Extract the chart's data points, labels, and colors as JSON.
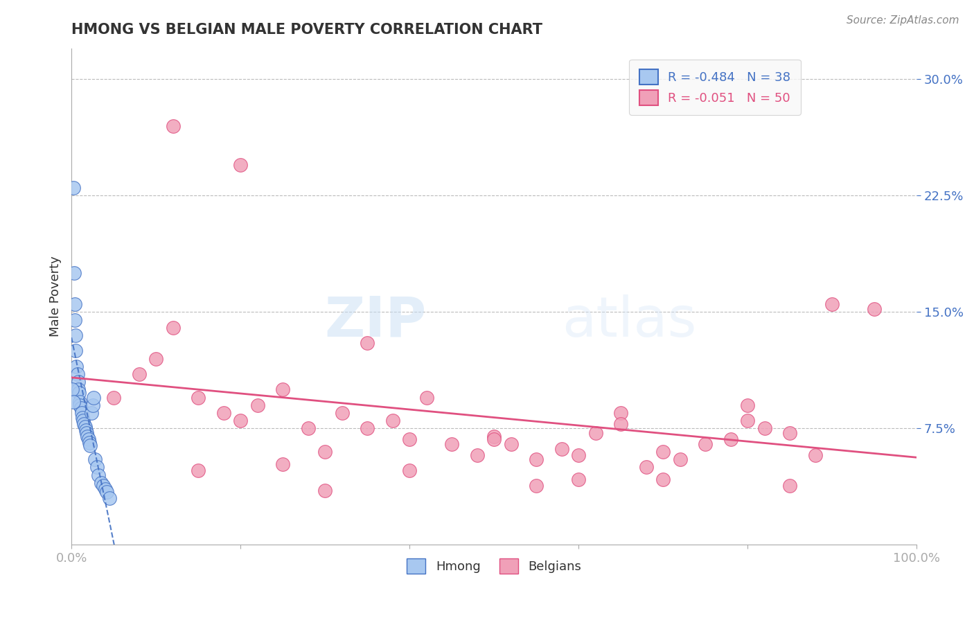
{
  "title": "HMONG VS BELGIAN MALE POVERTY CORRELATION CHART",
  "source": "Source: ZipAtlas.com",
  "ylabel": "Male Poverty",
  "ytick_labels": [
    "7.5%",
    "15.0%",
    "22.5%",
    "30.0%"
  ],
  "ytick_values": [
    0.075,
    0.15,
    0.225,
    0.3
  ],
  "xlim": [
    0.0,
    1.0
  ],
  "ylim": [
    0.0,
    0.32
  ],
  "legend_r_hmong": "R = -0.484",
  "legend_n_hmong": "N = 38",
  "legend_r_belgian": "R = -0.051",
  "legend_n_belgian": "N = 50",
  "hmong_color": "#a8c8f0",
  "belgian_color": "#f0a0b8",
  "hmong_line_color": "#4472c4",
  "belgian_line_color": "#e05080",
  "watermark_zip": "ZIP",
  "watermark_atlas": "atlas",
  "background_color": "#ffffff",
  "hmong_x": [
    0.002,
    0.003,
    0.004,
    0.004,
    0.005,
    0.005,
    0.006,
    0.007,
    0.008,
    0.008,
    0.009,
    0.01,
    0.01,
    0.011,
    0.012,
    0.013,
    0.014,
    0.015,
    0.016,
    0.017,
    0.018,
    0.019,
    0.02,
    0.021,
    0.022,
    0.024,
    0.025,
    0.026,
    0.028,
    0.03,
    0.032,
    0.035,
    0.038,
    0.04,
    0.042,
    0.045,
    0.001,
    0.002
  ],
  "hmong_y": [
    0.23,
    0.175,
    0.155,
    0.145,
    0.135,
    0.125,
    0.115,
    0.11,
    0.105,
    0.1,
    0.098,
    0.092,
    0.09,
    0.088,
    0.085,
    0.082,
    0.08,
    0.078,
    0.076,
    0.074,
    0.072,
    0.07,
    0.068,
    0.066,
    0.064,
    0.085,
    0.09,
    0.095,
    0.055,
    0.05,
    0.045,
    0.04,
    0.038,
    0.036,
    0.034,
    0.03,
    0.1,
    0.092
  ],
  "belgian_x": [
    0.05,
    0.08,
    0.1,
    0.12,
    0.15,
    0.18,
    0.2,
    0.22,
    0.25,
    0.28,
    0.3,
    0.32,
    0.35,
    0.38,
    0.4,
    0.42,
    0.45,
    0.48,
    0.5,
    0.52,
    0.55,
    0.58,
    0.6,
    0.62,
    0.65,
    0.68,
    0.7,
    0.72,
    0.75,
    0.78,
    0.8,
    0.82,
    0.85,
    0.88,
    0.9,
    0.12,
    0.2,
    0.35,
    0.5,
    0.65,
    0.8,
    0.15,
    0.25,
    0.4,
    0.55,
    0.7,
    0.85,
    0.3,
    0.6,
    0.95
  ],
  "belgian_y": [
    0.095,
    0.11,
    0.12,
    0.14,
    0.095,
    0.085,
    0.08,
    0.09,
    0.1,
    0.075,
    0.06,
    0.085,
    0.075,
    0.08,
    0.068,
    0.095,
    0.065,
    0.058,
    0.07,
    0.065,
    0.055,
    0.062,
    0.058,
    0.072,
    0.085,
    0.05,
    0.06,
    0.055,
    0.065,
    0.068,
    0.09,
    0.075,
    0.072,
    0.058,
    0.155,
    0.27,
    0.245,
    0.13,
    0.068,
    0.078,
    0.08,
    0.048,
    0.052,
    0.048,
    0.038,
    0.042,
    0.038,
    0.035,
    0.042,
    0.152
  ]
}
